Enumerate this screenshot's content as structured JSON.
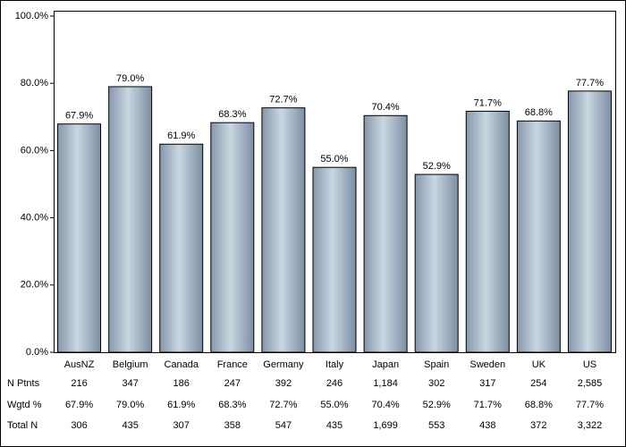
{
  "chart_data": {
    "type": "bar",
    "categories": [
      "AusNZ",
      "Belgium",
      "Canada",
      "France",
      "Germany",
      "Italy",
      "Japan",
      "Spain",
      "Sweden",
      "UK",
      "US"
    ],
    "values": [
      67.9,
      79.0,
      61.9,
      68.3,
      72.7,
      55.0,
      70.4,
      52.9,
      71.7,
      68.8,
      77.7
    ],
    "value_labels": [
      "67.9%",
      "79.0%",
      "61.9%",
      "68.3%",
      "72.7%",
      "55.0%",
      "70.4%",
      "52.9%",
      "71.7%",
      "68.8%",
      "77.7%"
    ],
    "color": "#c9d7e1",
    "ylim": [
      0,
      100
    ],
    "yticks": [
      {
        "value": 0,
        "label": "0.0%"
      },
      {
        "value": 20,
        "label": "20.0%"
      },
      {
        "value": 40,
        "label": "40.0%"
      },
      {
        "value": 60,
        "label": "60.0%"
      },
      {
        "value": 80,
        "label": "80.0%"
      },
      {
        "value": 100,
        "label": "100.0%"
      }
    ],
    "grid": false,
    "table": {
      "rows": [
        {
          "label": "N Ptnts",
          "cells": [
            "216",
            "347",
            "186",
            "247",
            "392",
            "246",
            "1,184",
            "302",
            "317",
            "254",
            "2,585"
          ]
        },
        {
          "label": "Wgtd %",
          "cells": [
            "67.9%",
            "79.0%",
            "61.9%",
            "68.3%",
            "72.7%",
            "55.0%",
            "70.4%",
            "52.9%",
            "71.7%",
            "68.8%",
            "77.7%"
          ]
        },
        {
          "label": "Total N",
          "cells": [
            "306",
            "435",
            "307",
            "358",
            "547",
            "435",
            "1,699",
            "553",
            "438",
            "372",
            "3,322"
          ]
        }
      ]
    }
  }
}
